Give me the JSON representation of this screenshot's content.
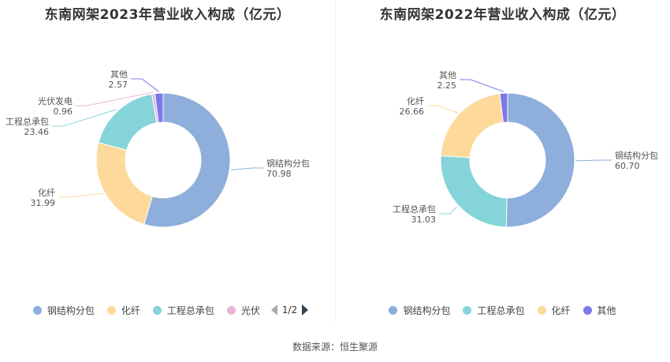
{
  "footer": {
    "source": "数据来源：恒生聚源"
  },
  "legend_pager": {
    "page": "1/2"
  },
  "chart_data": [
    {
      "type": "pie",
      "title": "东南网架2023年营业收入构成（亿元）",
      "donut": true,
      "slices": [
        {
          "name": "钢结构分包",
          "value": 70.98,
          "display": "70.98",
          "color": "#8eaedc"
        },
        {
          "name": "化纤",
          "value": 31.99,
          "display": "31.99",
          "color": "#fdd99b"
        },
        {
          "name": "工程总承包",
          "value": 23.46,
          "display": "23.46",
          "color": "#85d4d9"
        },
        {
          "name": "光伏发电",
          "value": 0.96,
          "display": "0.96",
          "color": "#e9b6d9"
        },
        {
          "name": "其他",
          "value": 2.57,
          "display": "2.57",
          "color": "#7b79ea"
        }
      ],
      "legend": [
        "钢结构分包",
        "化纤",
        "工程总承包",
        "光伏"
      ]
    },
    {
      "type": "pie",
      "title": "东南网架2022年营业收入构成（亿元）",
      "donut": true,
      "slices": [
        {
          "name": "钢结构分包",
          "value": 60.7,
          "display": "60.70",
          "color": "#8eaedc"
        },
        {
          "name": "工程总承包",
          "value": 31.03,
          "display": "31.03",
          "color": "#85d4d9"
        },
        {
          "name": "化纤",
          "value": 26.66,
          "display": "26.66",
          "color": "#fdd99b"
        },
        {
          "name": "其他",
          "value": 2.25,
          "display": "2.25",
          "color": "#7b79ea"
        }
      ],
      "legend": [
        "钢结构分包",
        "工程总承包",
        "化纤",
        "其他"
      ]
    }
  ]
}
